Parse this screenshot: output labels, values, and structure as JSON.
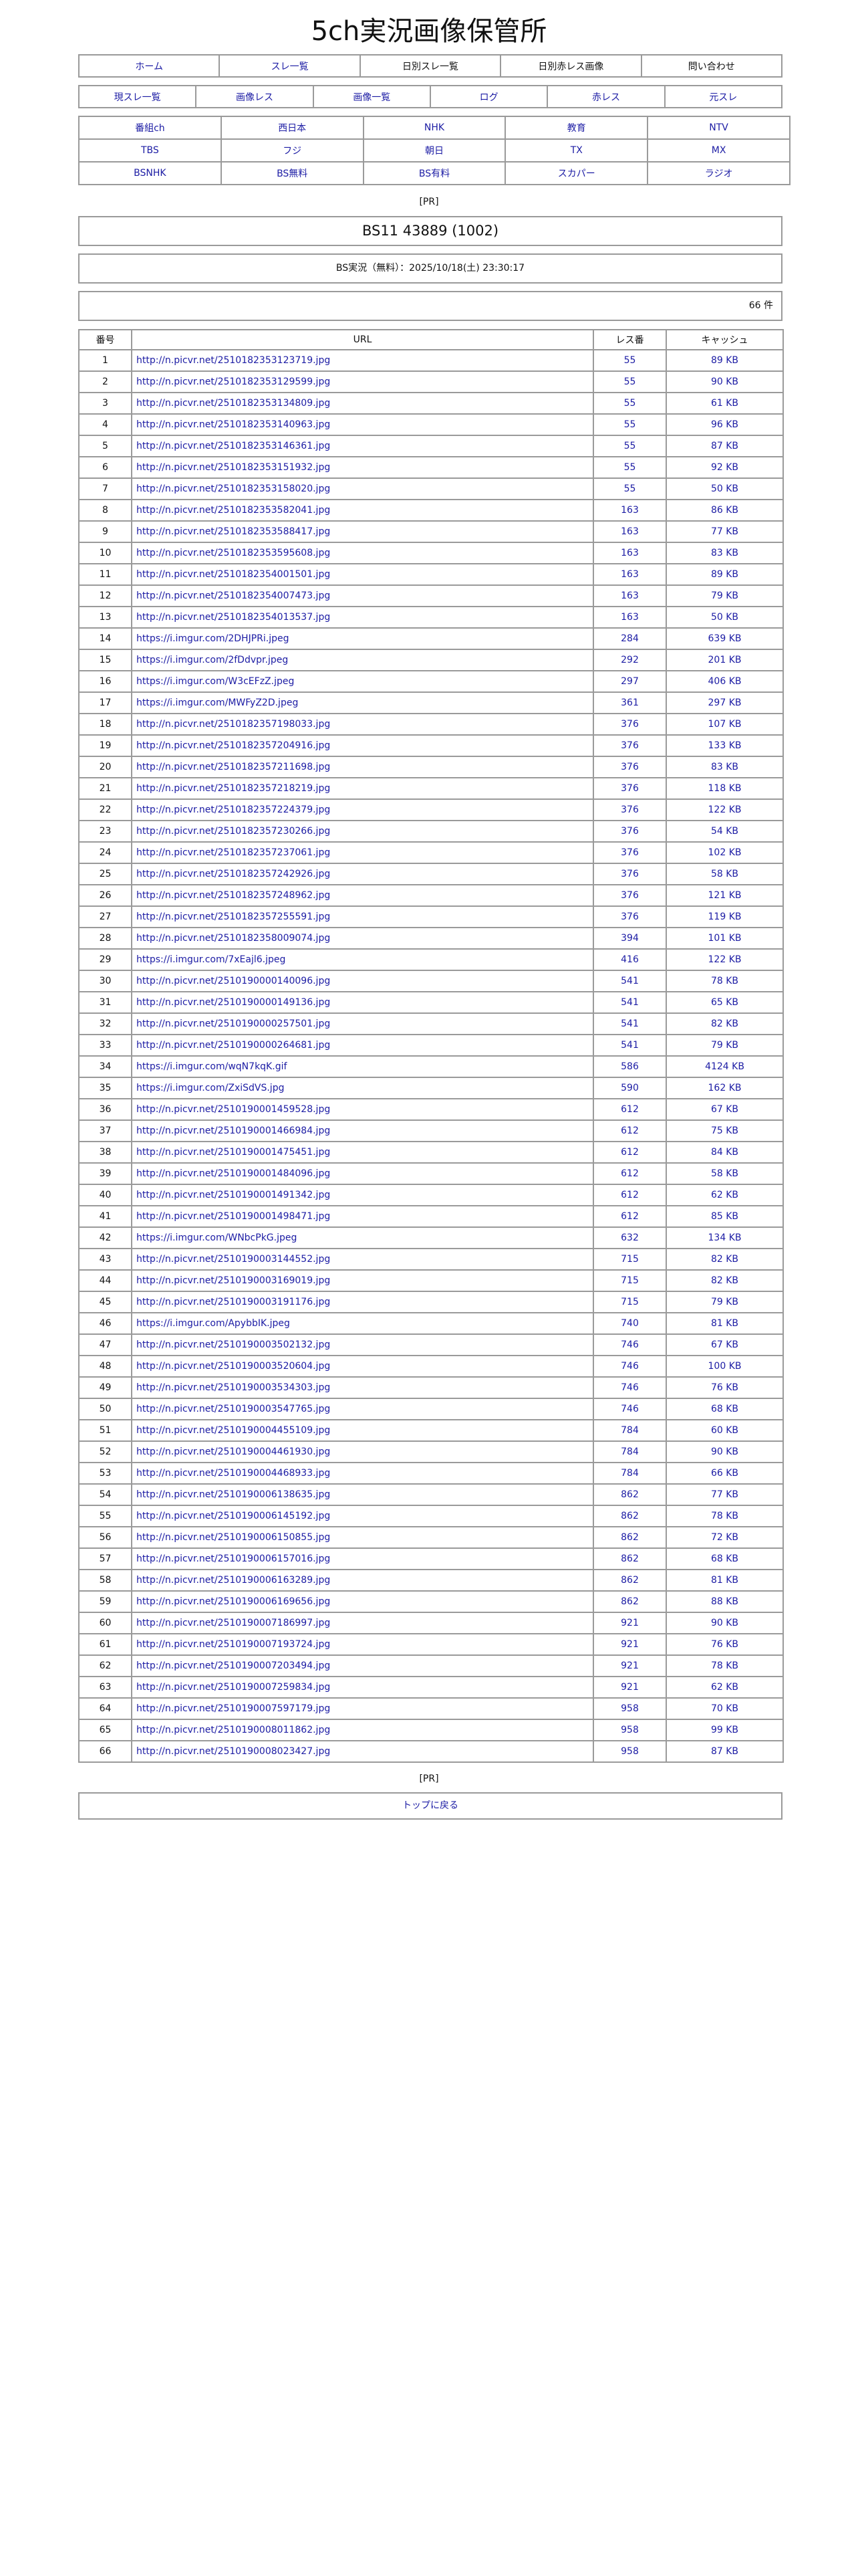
{
  "site_title": "5ch実況画像保管所",
  "nav1": [
    {
      "label": "ホーム",
      "link": true
    },
    {
      "label": "スレ一覧",
      "link": true
    },
    {
      "label": "日別スレ一覧",
      "link": false
    },
    {
      "label": "日別赤レス画像",
      "link": false
    },
    {
      "label": "問い合わせ",
      "link": false
    }
  ],
  "nav2": [
    "現スレ一覧",
    "画像レス",
    "画像一覧",
    "ログ",
    "赤レス",
    "元スレ"
  ],
  "nav3": [
    [
      "番組ch",
      "西日本",
      "NHK",
      "教育",
      "NTV"
    ],
    [
      "TBS",
      "フジ",
      "朝日",
      "TX",
      "MX"
    ],
    [
      "BSNHK",
      "BS無料",
      "BS有料",
      "スカパー",
      "ラジオ"
    ]
  ],
  "pr_label": "[PR]",
  "thread_title": "BS11 43889 (1002)",
  "thread_info": "BS実況（無料）：2025/10/18(土) 23:30:17",
  "count": "66 件",
  "colors": {
    "link": "#1c1ca4",
    "border": "#9a9a9a"
  },
  "table": {
    "headers": [
      "番号",
      "URL",
      "レス番",
      "キャッシュ"
    ],
    "rows": [
      [
        "1",
        "http://n.picvr.net/2510182353123719.jpg",
        "55",
        "89 KB"
      ],
      [
        "2",
        "http://n.picvr.net/2510182353129599.jpg",
        "55",
        "90 KB"
      ],
      [
        "3",
        "http://n.picvr.net/2510182353134809.jpg",
        "55",
        "61 KB"
      ],
      [
        "4",
        "http://n.picvr.net/2510182353140963.jpg",
        "55",
        "96 KB"
      ],
      [
        "5",
        "http://n.picvr.net/2510182353146361.jpg",
        "55",
        "87 KB"
      ],
      [
        "6",
        "http://n.picvr.net/2510182353151932.jpg",
        "55",
        "92 KB"
      ],
      [
        "7",
        "http://n.picvr.net/2510182353158020.jpg",
        "55",
        "50 KB"
      ],
      [
        "8",
        "http://n.picvr.net/2510182353582041.jpg",
        "163",
        "86 KB"
      ],
      [
        "9",
        "http://n.picvr.net/2510182353588417.jpg",
        "163",
        "77 KB"
      ],
      [
        "10",
        "http://n.picvr.net/2510182353595608.jpg",
        "163",
        "83 KB"
      ],
      [
        "11",
        "http://n.picvr.net/2510182354001501.jpg",
        "163",
        "89 KB"
      ],
      [
        "12",
        "http://n.picvr.net/2510182354007473.jpg",
        "163",
        "79 KB"
      ],
      [
        "13",
        "http://n.picvr.net/2510182354013537.jpg",
        "163",
        "50 KB"
      ],
      [
        "14",
        "https://i.imgur.com/2DHJPRi.jpeg",
        "284",
        "639 KB"
      ],
      [
        "15",
        "https://i.imgur.com/2fDdvpr.jpeg",
        "292",
        "201 KB"
      ],
      [
        "16",
        "https://i.imgur.com/W3cEFzZ.jpeg",
        "297",
        "406 KB"
      ],
      [
        "17",
        "https://i.imgur.com/MWFyZ2D.jpeg",
        "361",
        "297 KB"
      ],
      [
        "18",
        "http://n.picvr.net/2510182357198033.jpg",
        "376",
        "107 KB"
      ],
      [
        "19",
        "http://n.picvr.net/2510182357204916.jpg",
        "376",
        "133 KB"
      ],
      [
        "20",
        "http://n.picvr.net/2510182357211698.jpg",
        "376",
        "83 KB"
      ],
      [
        "21",
        "http://n.picvr.net/2510182357218219.jpg",
        "376",
        "118 KB"
      ],
      [
        "22",
        "http://n.picvr.net/2510182357224379.jpg",
        "376",
        "122 KB"
      ],
      [
        "23",
        "http://n.picvr.net/2510182357230266.jpg",
        "376",
        "54 KB"
      ],
      [
        "24",
        "http://n.picvr.net/2510182357237061.jpg",
        "376",
        "102 KB"
      ],
      [
        "25",
        "http://n.picvr.net/2510182357242926.jpg",
        "376",
        "58 KB"
      ],
      [
        "26",
        "http://n.picvr.net/2510182357248962.jpg",
        "376",
        "121 KB"
      ],
      [
        "27",
        "http://n.picvr.net/2510182357255591.jpg",
        "376",
        "119 KB"
      ],
      [
        "28",
        "http://n.picvr.net/2510182358009074.jpg",
        "394",
        "101 KB"
      ],
      [
        "29",
        "https://i.imgur.com/7xEajl6.jpeg",
        "416",
        "122 KB"
      ],
      [
        "30",
        "http://n.picvr.net/2510190000140096.jpg",
        "541",
        "78 KB"
      ],
      [
        "31",
        "http://n.picvr.net/2510190000149136.jpg",
        "541",
        "65 KB"
      ],
      [
        "32",
        "http://n.picvr.net/2510190000257501.jpg",
        "541",
        "82 KB"
      ],
      [
        "33",
        "http://n.picvr.net/2510190000264681.jpg",
        "541",
        "79 KB"
      ],
      [
        "34",
        "https://i.imgur.com/wqN7kqK.gif",
        "586",
        "4124 KB"
      ],
      [
        "35",
        "https://i.imgur.com/ZxiSdVS.jpg",
        "590",
        "162 KB"
      ],
      [
        "36",
        "http://n.picvr.net/2510190001459528.jpg",
        "612",
        "67 KB"
      ],
      [
        "37",
        "http://n.picvr.net/2510190001466984.jpg",
        "612",
        "75 KB"
      ],
      [
        "38",
        "http://n.picvr.net/2510190001475451.jpg",
        "612",
        "84 KB"
      ],
      [
        "39",
        "http://n.picvr.net/2510190001484096.jpg",
        "612",
        "58 KB"
      ],
      [
        "40",
        "http://n.picvr.net/2510190001491342.jpg",
        "612",
        "62 KB"
      ],
      [
        "41",
        "http://n.picvr.net/2510190001498471.jpg",
        "612",
        "85 KB"
      ],
      [
        "42",
        "https://i.imgur.com/WNbcPkG.jpeg",
        "632",
        "134 KB"
      ],
      [
        "43",
        "http://n.picvr.net/2510190003144552.jpg",
        "715",
        "82 KB"
      ],
      [
        "44",
        "http://n.picvr.net/2510190003169019.jpg",
        "715",
        "82 KB"
      ],
      [
        "45",
        "http://n.picvr.net/2510190003191176.jpg",
        "715",
        "79 KB"
      ],
      [
        "46",
        "https://i.imgur.com/ApybbIK.jpeg",
        "740",
        "81 KB"
      ],
      [
        "47",
        "http://n.picvr.net/2510190003502132.jpg",
        "746",
        "67 KB"
      ],
      [
        "48",
        "http://n.picvr.net/2510190003520604.jpg",
        "746",
        "100 KB"
      ],
      [
        "49",
        "http://n.picvr.net/2510190003534303.jpg",
        "746",
        "76 KB"
      ],
      [
        "50",
        "http://n.picvr.net/2510190003547765.jpg",
        "746",
        "68 KB"
      ],
      [
        "51",
        "http://n.picvr.net/2510190004455109.jpg",
        "784",
        "60 KB"
      ],
      [
        "52",
        "http://n.picvr.net/2510190004461930.jpg",
        "784",
        "90 KB"
      ],
      [
        "53",
        "http://n.picvr.net/2510190004468933.jpg",
        "784",
        "66 KB"
      ],
      [
        "54",
        "http://n.picvr.net/2510190006138635.jpg",
        "862",
        "77 KB"
      ],
      [
        "55",
        "http://n.picvr.net/2510190006145192.jpg",
        "862",
        "78 KB"
      ],
      [
        "56",
        "http://n.picvr.net/2510190006150855.jpg",
        "862",
        "72 KB"
      ],
      [
        "57",
        "http://n.picvr.net/2510190006157016.jpg",
        "862",
        "68 KB"
      ],
      [
        "58",
        "http://n.picvr.net/2510190006163289.jpg",
        "862",
        "81 KB"
      ],
      [
        "59",
        "http://n.picvr.net/2510190006169656.jpg",
        "862",
        "88 KB"
      ],
      [
        "60",
        "http://n.picvr.net/2510190007186997.jpg",
        "921",
        "90 KB"
      ],
      [
        "61",
        "http://n.picvr.net/2510190007193724.jpg",
        "921",
        "76 KB"
      ],
      [
        "62",
        "http://n.picvr.net/2510190007203494.jpg",
        "921",
        "78 KB"
      ],
      [
        "63",
        "http://n.picvr.net/2510190007259834.jpg",
        "921",
        "62 KB"
      ],
      [
        "64",
        "http://n.picvr.net/2510190007597179.jpg",
        "958",
        "70 KB"
      ],
      [
        "65",
        "http://n.picvr.net/2510190008011862.jpg",
        "958",
        "99 KB"
      ],
      [
        "66",
        "http://n.picvr.net/2510190008023427.jpg",
        "958",
        "87 KB"
      ]
    ]
  },
  "back_to_top": "トップに戻る"
}
